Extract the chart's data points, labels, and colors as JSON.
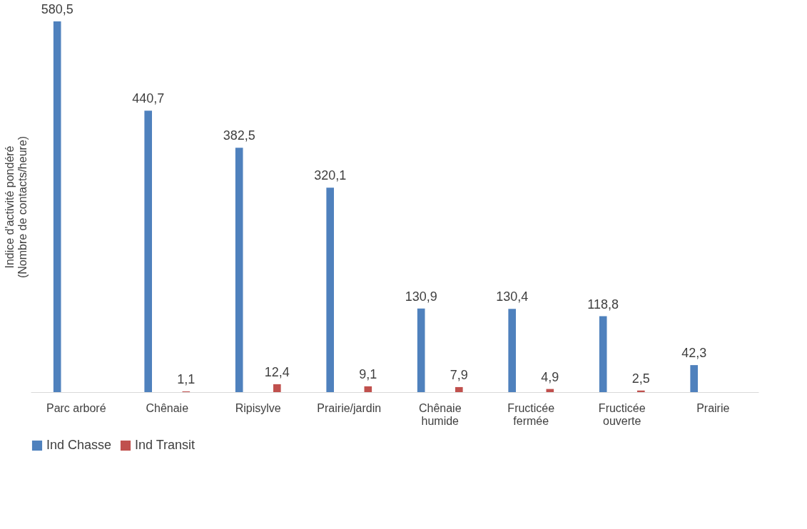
{
  "chart_data": {
    "type": "bar",
    "ylabel": "Indice d'activité pondéré\n(Nombre de contacts/heure)",
    "categories": [
      "Parc arboré",
      "Chênaie",
      "Ripisylve",
      "Prairie/jardin",
      "Chênaie\nhumide",
      "Fructicée\nfermée",
      "Fructicée\nouverte",
      "Prairie"
    ],
    "series": [
      {
        "name": "Ind Chasse",
        "color": "#4f81bd",
        "values": [
          580.5,
          440.7,
          382.5,
          320.1,
          130.9,
          130.4,
          118.8,
          42.3
        ],
        "value_labels": [
          "580,5",
          "440,7",
          "382,5",
          "320,1",
          "130,9",
          "130,4",
          "118,8",
          "42,3"
        ]
      },
      {
        "name": "Ind Transit",
        "color": "#c0504d",
        "values": [
          null,
          1.1,
          12.4,
          9.1,
          7.9,
          4.9,
          2.5,
          null
        ],
        "value_labels": [
          null,
          "1,1",
          "12,4",
          "9,1",
          "7,9",
          "4,9",
          "2,5",
          null
        ]
      }
    ],
    "data_labels": true,
    "legend": "bottom",
    "tick_labels": "x",
    "grid": false
  }
}
